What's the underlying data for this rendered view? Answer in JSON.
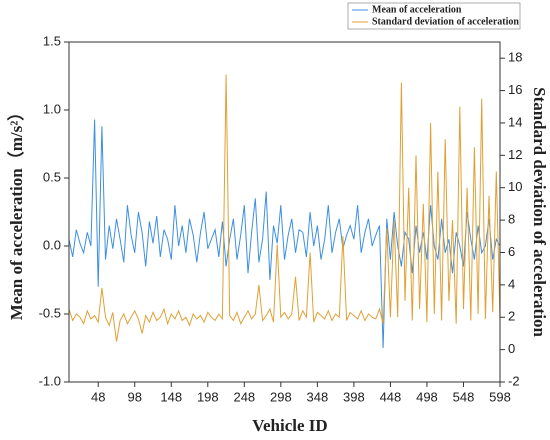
{
  "chart_data": {
    "type": "line",
    "xlabel": "Vehicle ID",
    "ylabel": "Mean of acceleration（m/s²）",
    "y2label": "Standard deviation of acceleration",
    "legend": "upper right",
    "x": [
      8,
      13,
      18,
      23,
      28,
      33,
      38,
      43,
      48,
      53,
      58,
      63,
      68,
      73,
      78,
      83,
      88,
      93,
      98,
      103,
      108,
      113,
      118,
      123,
      128,
      133,
      138,
      143,
      148,
      153,
      158,
      163,
      168,
      173,
      178,
      183,
      188,
      193,
      198,
      203,
      208,
      213,
      218,
      223,
      228,
      233,
      238,
      243,
      248,
      253,
      258,
      263,
      268,
      273,
      278,
      283,
      288,
      293,
      298,
      303,
      308,
      313,
      318,
      323,
      328,
      333,
      338,
      343,
      348,
      353,
      358,
      363,
      368,
      373,
      378,
      383,
      388,
      393,
      398,
      403,
      408,
      413,
      418,
      423,
      428,
      433,
      438,
      443,
      448,
      453,
      458,
      463,
      468,
      473,
      478,
      483,
      488,
      493,
      498,
      503,
      508,
      513,
      518,
      523,
      528,
      533,
      538,
      543,
      548,
      553,
      558,
      563,
      568,
      573,
      578,
      583,
      588,
      593,
      598
    ],
    "series": [
      {
        "name": "Mean of acceleration",
        "color": "#3d8fe0",
        "values": [
          0.05,
          -0.08,
          0.12,
          0.02,
          -0.05,
          0.1,
          0.0,
          0.93,
          -0.3,
          0.88,
          -0.1,
          0.15,
          -0.02,
          0.2,
          0.05,
          -0.12,
          0.3,
          0.08,
          -0.05,
          0.25,
          0.1,
          -0.15,
          0.18,
          0.02,
          0.22,
          -0.08,
          0.12,
          0.05,
          -0.1,
          0.3,
          0.0,
          0.15,
          -0.05,
          0.2,
          0.08,
          -0.12,
          0.1,
          0.25,
          -0.02,
          0.05,
          0.12,
          -0.08,
          0.18,
          -0.15,
          0.05,
          0.2,
          -0.1,
          0.08,
          0.3,
          -0.2,
          0.1,
          0.35,
          -0.12,
          0.05,
          0.4,
          -0.25,
          0.15,
          0.02,
          0.3,
          -0.1,
          0.08,
          0.2,
          -0.05,
          0.12,
          0.1,
          -0.08,
          0.25,
          0.0,
          0.15,
          -0.1,
          0.05,
          0.3,
          -0.05,
          0.1,
          0.2,
          -0.02,
          0.08,
          0.15,
          0.05,
          0.3,
          -0.05,
          0.1,
          0.2,
          0.0,
          0.08,
          0.15,
          -0.75,
          0.2,
          -0.1,
          0.25,
          0.0,
          -0.15,
          0.1,
          0.05,
          -0.2,
          0.15,
          -0.05,
          0.1,
          -0.1,
          0.3,
          0.0,
          -0.1,
          0.2,
          -0.05,
          0.05,
          -0.2,
          0.1,
          0.0,
          -0.15,
          0.25,
          0.05,
          -0.1,
          0.15,
          -0.05,
          0.0,
          0.2,
          -0.1,
          0.05,
          0.0
        ]
      },
      {
        "name": "Standard deviation of acceleration",
        "color": "#e0a035",
        "axis": "y2",
        "values": [
          2.5,
          1.8,
          2.2,
          2.0,
          1.6,
          2.4,
          1.9,
          2.1,
          1.7,
          3.8,
          2.0,
          1.5,
          2.3,
          0.5,
          1.8,
          2.2,
          1.6,
          2.0,
          2.4,
          1.9,
          1.0,
          2.1,
          1.7,
          2.3,
          1.8,
          2.0,
          2.5,
          1.6,
          2.2,
          1.9,
          2.4,
          1.8,
          2.0,
          1.5,
          2.2,
          1.9,
          2.1,
          1.7,
          2.3,
          2.0,
          1.8,
          2.2,
          1.9,
          17.0,
          2.1,
          1.8,
          2.3,
          1.6,
          2.0,
          2.4,
          1.9,
          2.2,
          4.0,
          1.8,
          2.1,
          2.5,
          1.7,
          6.5,
          2.0,
          2.3,
          1.9,
          2.2,
          4.5,
          1.8,
          2.4,
          2.0,
          6.0,
          1.7,
          2.3,
          2.1,
          1.9,
          2.4,
          1.8,
          2.2,
          2.0,
          7.0,
          1.8,
          2.3,
          2.1,
          1.9,
          2.4,
          1.8,
          2.2,
          2.0,
          1.9,
          2.5,
          1.6,
          7.5,
          2.0,
          8.0,
          2.0,
          16.5,
          3.0,
          10.0,
          1.8,
          12.0,
          2.5,
          9.0,
          1.7,
          14.0,
          2.2,
          11.0,
          1.8,
          13.0,
          3.0,
          8.0,
          1.6,
          15.0,
          2.5,
          10.0,
          1.8,
          12.5,
          2.2,
          15.5,
          1.9,
          9.5,
          2.3,
          11.0,
          1.8
        ]
      }
    ],
    "xlim": [
      8,
      598
    ],
    "xticks": [
      48,
      98,
      148,
      198,
      248,
      298,
      348,
      398,
      448,
      498,
      548,
      598
    ],
    "ylim": [
      -1,
      1.5
    ],
    "yticks": [
      {
        "value": -1,
        "label": "-1.0"
      },
      {
        "value": -0.5,
        "label": "-0.5"
      },
      {
        "value": 0,
        "label": "0.0"
      },
      0.5,
      {
        "value": 1,
        "label": "1.0"
      },
      1.5
    ],
    "y2lim": [
      -2,
      19
    ],
    "y2ticks": [
      -2,
      0,
      2,
      4,
      6,
      8,
      10,
      12,
      14,
      16,
      18
    ]
  }
}
